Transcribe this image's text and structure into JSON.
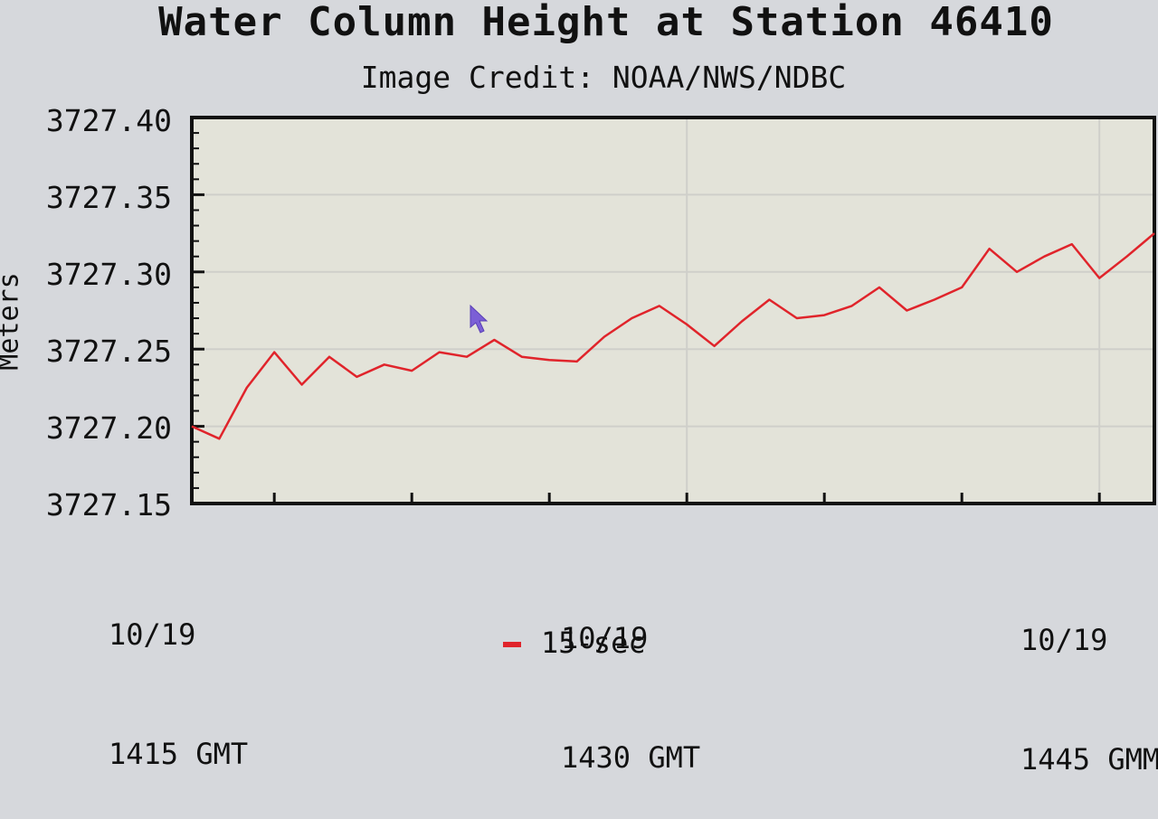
{
  "chart_data": {
    "type": "line",
    "title": "Water Column Height at Station 46410",
    "subtitle": "Image Credit: NOAA/NWS/NDBC",
    "ylabel": "Meters",
    "ylim": [
      3727.15,
      3727.4
    ],
    "yticks": [
      "3727.40",
      "3727.35",
      "3727.30",
      "3727.25",
      "3727.20",
      "3727.15"
    ],
    "xlim": [
      "10/19 1412 GMT",
      "10/19 1447 GMT"
    ],
    "xticks": [
      {
        "date": "10/19",
        "time": "1415 GMT"
      },
      {
        "date": "10/19",
        "time": "1430 GMT"
      },
      {
        "date": "10/19",
        "time": "1445 GMM"
      }
    ],
    "grid": true,
    "legend_position": "bottom-center",
    "series": [
      {
        "name": "15-sec",
        "color": "#e0242b",
        "x": [
          "14:12",
          "14:13",
          "14:14",
          "14:15",
          "14:16",
          "14:17",
          "14:18",
          "14:19",
          "14:20",
          "14:21",
          "14:22",
          "14:23",
          "14:24",
          "14:25",
          "14:26",
          "14:27",
          "14:28",
          "14:29",
          "14:30",
          "14:31",
          "14:32",
          "14:33",
          "14:34",
          "14:35",
          "14:36",
          "14:37",
          "14:38",
          "14:39",
          "14:40",
          "14:41",
          "14:42",
          "14:43",
          "14:44",
          "14:45",
          "14:46",
          "14:47"
        ],
        "y": [
          3727.2,
          3727.192,
          3727.225,
          3727.248,
          3727.227,
          3727.245,
          3727.232,
          3727.24,
          3727.236,
          3727.248,
          3727.245,
          3727.256,
          3727.245,
          3727.243,
          3727.242,
          3727.258,
          3727.27,
          3727.278,
          3727.266,
          3727.252,
          3727.268,
          3727.282,
          3727.27,
          3727.272,
          3727.278,
          3727.29,
          3727.275,
          3727.282,
          3727.29,
          3727.315,
          3727.3,
          3727.31,
          3727.318,
          3727.296,
          3727.31,
          3727.325
        ]
      }
    ]
  }
}
